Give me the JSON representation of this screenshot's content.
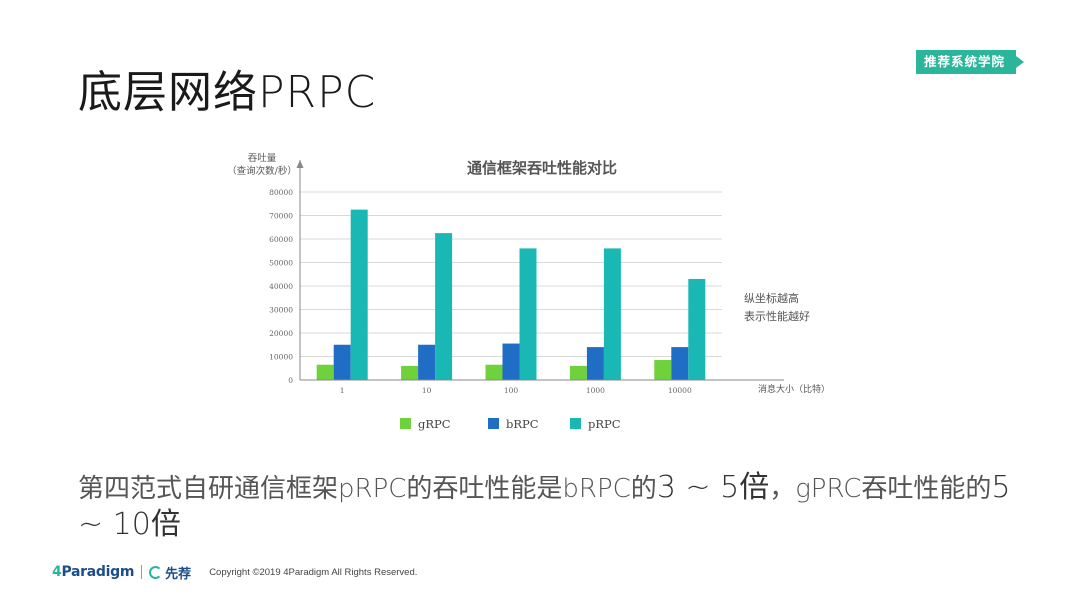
{
  "slide": {
    "title": "底层网络PRPC",
    "brand_tag": "推荐系统学院"
  },
  "caption": {
    "part1": "第四范式自研通信框架pRPC的吞吐性能是bRPC的",
    "highlight1": "3 ~ 5倍",
    "part2": "，gPRC吞吐性能的",
    "highlight2": "5 ~ 10倍"
  },
  "footer": {
    "logo_prefix": "4",
    "logo_main": "Paradigm",
    "logo2": "先荐",
    "copyright": "Copyright ©2019 4Paradigm All Rights Reserved."
  },
  "chart_data": {
    "type": "bar",
    "title": "通信框架吞吐性能对比",
    "ylabel_line1": "吞吐量",
    "ylabel_line2": "（查询次数/秒）",
    "xlabel": "消息大小（比特）",
    "annotation_line1": "纵坐标越高",
    "annotation_line2": "表示性能越好",
    "categories": [
      "1",
      "10",
      "100",
      "1000",
      "10000"
    ],
    "ylim": [
      0,
      80000
    ],
    "yticks": [
      0,
      10000,
      20000,
      30000,
      40000,
      50000,
      60000,
      70000,
      80000
    ],
    "grid": true,
    "legend_position": "bottom",
    "series": [
      {
        "name": "gRPC",
        "color": "#6fd13c",
        "values": [
          6500,
          6000,
          6500,
          6000,
          8500
        ]
      },
      {
        "name": "bRPC",
        "color": "#1f6dc4",
        "values": [
          15000,
          15000,
          15500,
          14000,
          14000
        ]
      },
      {
        "name": "pRPC",
        "color": "#19b8b4",
        "values": [
          72500,
          62500,
          56000,
          56000,
          43000
        ]
      }
    ]
  }
}
